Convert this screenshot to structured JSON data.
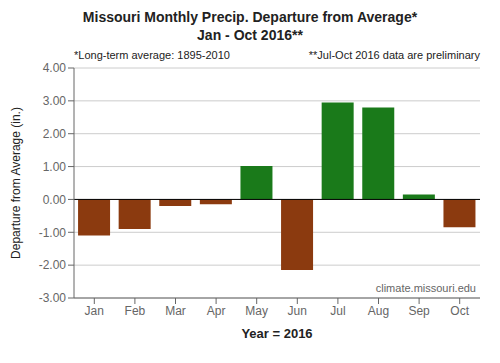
{
  "chart_data": {
    "type": "bar",
    "title": "Missouri Monthly Precip. Departure from Average*",
    "subtitle": "Jan - Oct 2016**",
    "x_label": "Year = 2016",
    "y_label": "Departure from Average (in.)",
    "annotations": [
      "*Long-term average: 1895-2010",
      "**Jul-Oct 2016 data are preliminary",
      "climate.missouri.edu"
    ],
    "categories": [
      "Jan",
      "Feb",
      "Mar",
      "Apr",
      "May",
      "Jun",
      "Jul",
      "Aug",
      "Sep",
      "Oct"
    ],
    "values": [
      -1.1,
      -0.9,
      -0.2,
      -0.15,
      1.02,
      -2.15,
      2.95,
      2.8,
      0.15,
      -0.85
    ],
    "colors": [
      "#8B3A0F",
      "#8B3A0F",
      "#8B3A0F",
      "#8B3A0F",
      "#1A7A1A",
      "#8B3A0F",
      "#1A7A1A",
      "#1A7A1A",
      "#1A7A1A",
      "#8B3A0F"
    ],
    "ylim": [
      -3.0,
      4.0
    ],
    "yticks": [
      {
        "value": -3.0,
        "label": "-3.00"
      },
      {
        "value": -2.0,
        "label": "-2.00"
      },
      {
        "value": -1.0,
        "label": "-1.00"
      },
      {
        "value": 0.0,
        "label": "0.00"
      },
      {
        "value": 1.0,
        "label": "1.00"
      },
      {
        "value": 2.0,
        "label": "2.00"
      },
      {
        "value": 3.0,
        "label": "3.00"
      },
      {
        "value": 4.0,
        "label": "4.00"
      }
    ],
    "grid": true
  }
}
